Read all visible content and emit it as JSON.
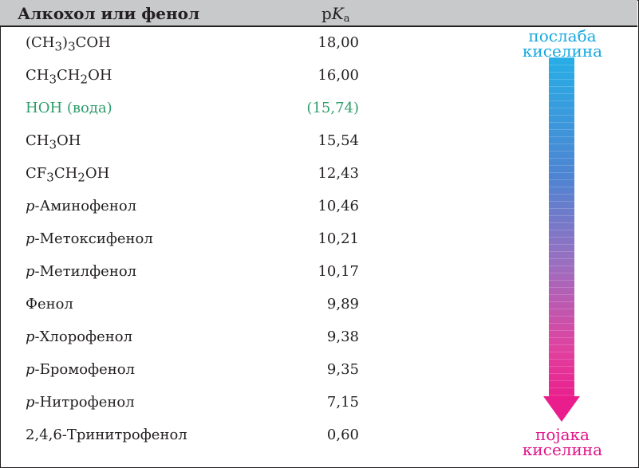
{
  "header": {
    "col1": "Алкохол или фенол",
    "col2_prefix": "p",
    "col2_K": "K",
    "col2_sub": "a"
  },
  "rows": [
    {
      "name_html": "(CH<sub>3</sub>)<sub>3</sub>COH",
      "value": "18,00"
    },
    {
      "name_html": "CH<sub>3</sub>CH<sub>2</sub>OH",
      "value": "16,00"
    },
    {
      "name_html": "HOH (вода)",
      "value": "(15,74)"
    },
    {
      "name_html": "CH<sub>3</sub>OH",
      "value": "15,54"
    },
    {
      "name_html": "CF<sub>3</sub>CH<sub>2</sub>OH",
      "value": "12,43"
    },
    {
      "prefix": "p",
      "name": "-Аминофенол",
      "value": "10,46"
    },
    {
      "prefix": "p",
      "name": "-Метоксифенол",
      "value": "10,21"
    },
    {
      "prefix": "p",
      "name": "-Метилфенол",
      "value": "10,17"
    },
    {
      "name": "Фенол",
      "value": "9,89"
    },
    {
      "prefix": "p",
      "name": "-Хлорофенол",
      "value": "9,38"
    },
    {
      "prefix": "p",
      "name": "-Бромофенол",
      "value": "9,35"
    },
    {
      "prefix": "p",
      "name": "-Нитрофенол",
      "value": "7,15"
    },
    {
      "name": "2,4,6-Тринитрофенол",
      "value": "0,60"
    }
  ],
  "arrow": {
    "top_label_1": "послаба",
    "top_label_2": "киселина",
    "bottom_label_1": "појака",
    "bottom_label_2": "киселина",
    "colors": {
      "top": "#27aee6",
      "bottom": "#ea1d8c",
      "highlight_row": "#2e9e6a"
    }
  }
}
